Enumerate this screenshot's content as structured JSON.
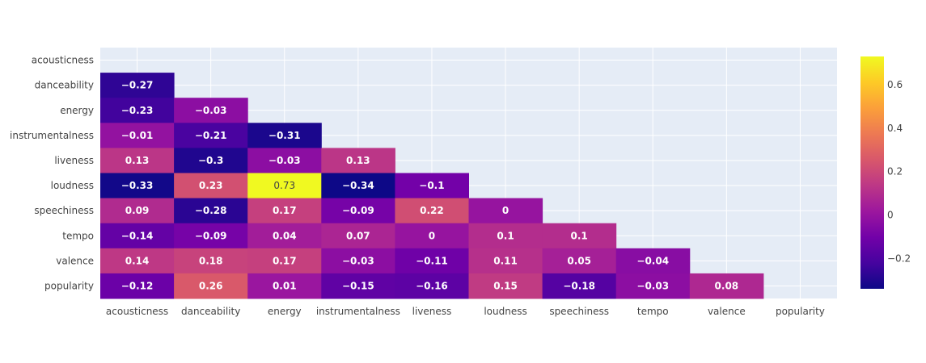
{
  "chart_data": {
    "type": "heatmap",
    "title": "",
    "xlabel": "",
    "ylabel": "",
    "x": [
      "acousticness",
      "danceability",
      "energy",
      "instrumentalness",
      "liveness",
      "loudness",
      "speechiness",
      "tempo",
      "valence",
      "popularity"
    ],
    "y": [
      "acousticness",
      "danceability",
      "energy",
      "instrumentalness",
      "liveness",
      "loudness",
      "speechiness",
      "tempo",
      "valence",
      "popularity"
    ],
    "z": [
      [
        null,
        null,
        null,
        null,
        null,
        null,
        null,
        null,
        null,
        null
      ],
      [
        -0.27,
        null,
        null,
        null,
        null,
        null,
        null,
        null,
        null,
        null
      ],
      [
        -0.23,
        -0.03,
        null,
        null,
        null,
        null,
        null,
        null,
        null,
        null
      ],
      [
        -0.01,
        -0.21,
        -0.31,
        null,
        null,
        null,
        null,
        null,
        null,
        null
      ],
      [
        0.13,
        -0.3,
        -0.03,
        0.13,
        null,
        null,
        null,
        null,
        null,
        null
      ],
      [
        -0.33,
        0.23,
        0.73,
        -0.34,
        -0.1,
        null,
        null,
        null,
        null,
        null
      ],
      [
        0.09,
        -0.28,
        0.17,
        -0.09,
        0.22,
        0,
        null,
        null,
        null,
        null
      ],
      [
        -0.14,
        -0.09,
        0.04,
        0.07,
        0,
        0.1,
        0.1,
        null,
        null,
        null
      ],
      [
        0.14,
        0.18,
        0.17,
        -0.03,
        -0.11,
        0.11,
        0.05,
        -0.04,
        null,
        null
      ],
      [
        -0.12,
        0.26,
        0.01,
        -0.15,
        -0.16,
        0.15,
        -0.18,
        -0.03,
        0.08,
        null
      ]
    ],
    "zrange": [
      -0.34,
      0.73
    ],
    "colorscale": "plasma",
    "colorbar": {
      "ticks": [
        -0.2,
        0,
        0.2,
        0.4,
        0.6
      ]
    },
    "plot_background": "#e5ecf6",
    "grid": true
  }
}
